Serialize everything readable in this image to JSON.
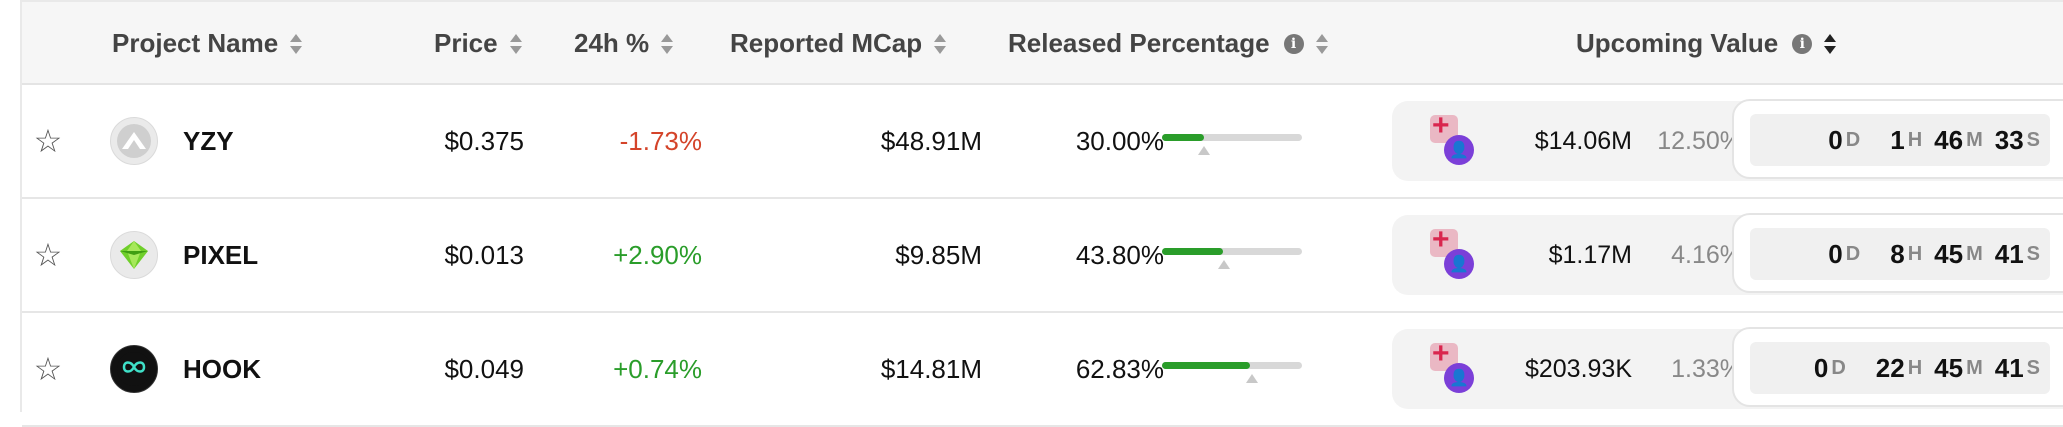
{
  "header": {
    "project_name": "Project Name",
    "price": "Price",
    "change_24h": "24h %",
    "reported_mcap": "Reported MCap",
    "released_percentage": "Released Percentage",
    "upcoming_value": "Upcoming Value",
    "info_glyph": "i"
  },
  "rows": [
    {
      "name": "YZY",
      "price": "$0.375",
      "change": "-1.73%",
      "change_color": "#d4442a",
      "mcap": "$48.91M",
      "released": "30.00%",
      "released_fraction": 0.3,
      "marker_fraction": 0.3,
      "upcoming_value": "$14.06M",
      "upcoming_pct": "12.50%",
      "countdown": {
        "d": "0",
        "h": "1",
        "m": "46",
        "s": "33"
      }
    },
    {
      "name": "PIXEL",
      "price": "$0.013",
      "change": "+2.90%",
      "change_color": "#2a9d2a",
      "mcap": "$9.85M",
      "released": "43.80%",
      "released_fraction": 0.438,
      "marker_fraction": 0.44,
      "upcoming_value": "$1.17M",
      "upcoming_pct": "4.16%",
      "countdown": {
        "d": "0",
        "h": "8",
        "m": "45",
        "s": "41"
      }
    },
    {
      "name": "HOOK",
      "price": "$0.049",
      "change": "+0.74%",
      "change_color": "#2a9d2a",
      "mcap": "$14.81M",
      "released": "62.83%",
      "released_fraction": 0.6283,
      "marker_fraction": 0.64,
      "upcoming_value": "$203.93K",
      "upcoming_pct": "1.33%",
      "countdown": {
        "d": "0",
        "h": "22",
        "m": "45",
        "s": "41"
      }
    }
  ],
  "units": {
    "d": "D",
    "h": "H",
    "m": "M",
    "s": "S"
  },
  "icons": {
    "star": "star-outline-icon",
    "sort": "sort-arrows-icon",
    "info": "info-icon",
    "unlock": "unlock-icon"
  }
}
